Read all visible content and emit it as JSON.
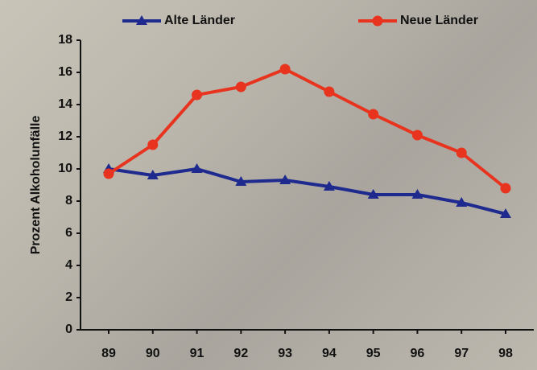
{
  "chart_data": {
    "type": "line",
    "y_label": "Prozent Alkoholunfälle",
    "categories": [
      "89",
      "90",
      "91",
      "92",
      "93",
      "94",
      "95",
      "96",
      "97",
      "98"
    ],
    "series": [
      {
        "name": "Alte Länder",
        "color": "#1f2a8f",
        "marker": "triangle",
        "values": [
          10.0,
          9.6,
          10.0,
          9.2,
          9.3,
          8.9,
          8.4,
          8.4,
          7.9,
          7.2
        ]
      },
      {
        "name": "Neue Länder",
        "color": "#e8341f",
        "marker": "circle",
        "values": [
          9.7,
          11.5,
          14.6,
          15.1,
          16.2,
          14.8,
          13.4,
          12.1,
          11.0,
          8.8
        ]
      }
    ],
    "ylim": [
      0,
      18
    ],
    "yticks": [
      0,
      2,
      4,
      6,
      8,
      10,
      12,
      14,
      16,
      18
    ],
    "legend": "top"
  }
}
